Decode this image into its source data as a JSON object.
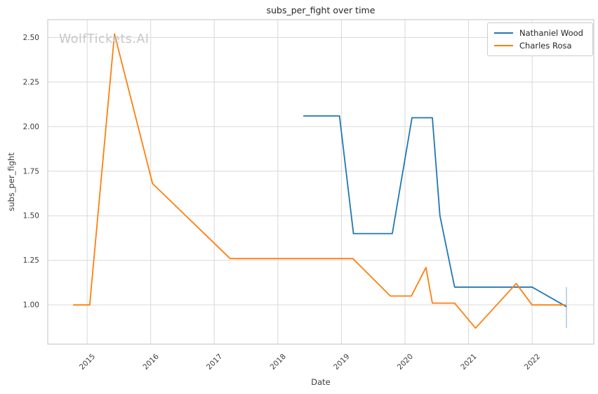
{
  "chart_data": {
    "type": "line",
    "title": "subs_per_fight over time",
    "xlabel": "Date",
    "ylabel": "subs_per_fight",
    "watermark": "WolfTickets.AI",
    "x_unit": "decimal_year",
    "xlim": [
      2014.38,
      2022.97
    ],
    "ylim": [
      0.78,
      2.6
    ],
    "grid": true,
    "legend_position": "upper-right",
    "xticks": [
      2015,
      2016,
      2017,
      2018,
      2019,
      2020,
      2021,
      2022
    ],
    "xtick_labels": [
      "2015",
      "2016",
      "2017",
      "2018",
      "2019",
      "2020",
      "2021",
      "2022"
    ],
    "yticks": [
      1.0,
      1.25,
      1.5,
      1.75,
      2.0,
      2.25,
      2.5
    ],
    "ytick_labels": [
      "1.00",
      "1.25",
      "1.50",
      "1.75",
      "2.00",
      "2.25",
      "2.50"
    ],
    "series": [
      {
        "name": "Nathaniel Wood",
        "color": "#1f77b4",
        "points": [
          [
            2018.4,
            2.06
          ],
          [
            2018.97,
            2.06
          ],
          [
            2019.19,
            1.4
          ],
          [
            2019.8,
            1.4
          ],
          [
            2020.11,
            2.05
          ],
          [
            2020.43,
            2.05
          ],
          [
            2020.55,
            1.5
          ],
          [
            2020.78,
            1.1
          ],
          [
            2022.0,
            1.1
          ],
          [
            2022.54,
            0.99
          ]
        ]
      },
      {
        "name": "Charles Rosa",
        "color": "#ff7f0e",
        "points": [
          [
            2014.78,
            1.0
          ],
          [
            2015.04,
            1.0
          ],
          [
            2015.43,
            2.52
          ],
          [
            2016.03,
            1.68
          ],
          [
            2017.25,
            1.26
          ],
          [
            2019.18,
            1.26
          ],
          [
            2019.77,
            1.05
          ],
          [
            2020.1,
            1.05
          ],
          [
            2020.33,
            1.21
          ],
          [
            2020.43,
            1.01
          ],
          [
            2020.78,
            1.01
          ],
          [
            2021.11,
            0.87
          ],
          [
            2021.75,
            1.12
          ],
          [
            2022.0,
            1.0
          ],
          [
            2022.53,
            1.0
          ]
        ]
      }
    ],
    "annotations": [
      {
        "type": "vline_segment",
        "x": 2022.54,
        "y0": 0.87,
        "y1": 1.1,
        "color": "#aec7e8"
      }
    ],
    "colors": {
      "grid": "#d9d9d9",
      "spine": "#cccccc",
      "tick_text": "#3b3b3b",
      "title_text": "#262626",
      "watermark": "#c8c8c8",
      "background": "#ffffff"
    }
  }
}
